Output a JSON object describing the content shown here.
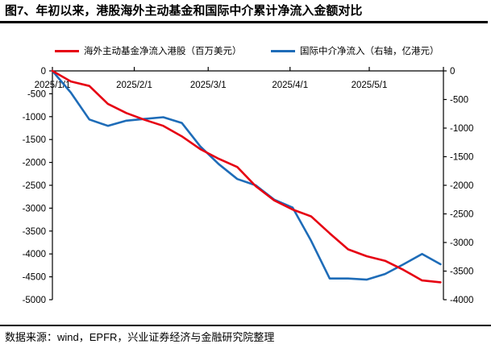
{
  "title": "图7、年初以来，港股海外主动基金和国际中介累计净流入金额对比",
  "colors": {
    "series_red": "#e60012",
    "series_blue": "#1e6cb8",
    "axis": "#000000",
    "rule": "#000000"
  },
  "legend": {
    "items": [
      {
        "label": "海外主动基金净流入港股（百万美元）",
        "color": "#e60012"
      },
      {
        "label": "国际中介净流入（右轴，亿港元）",
        "color": "#1e6cb8"
      }
    ]
  },
  "footer": {
    "source_text": "数据来源：wind，EPFR，兴业证券经济与金融研究院整理"
  },
  "chart_data": {
    "type": "line",
    "title": "图7、年初以来，港股海外主动基金和国际中介累计净流入金额对比",
    "grid": false,
    "legend_position": "top",
    "x": [
      "2025/1/1",
      "2025/1/8",
      "2025/1/15",
      "2025/1/22",
      "2025/1/29",
      "2025/2/5",
      "2025/2/12",
      "2025/2/19",
      "2025/2/26",
      "2025/3/5",
      "2025/3/12",
      "2025/3/19",
      "2025/3/26",
      "2025/4/2",
      "2025/4/9",
      "2025/4/16",
      "2025/4/23",
      "2025/4/30",
      "2025/5/7",
      "2025/5/14",
      "2025/5/21",
      "2025/5/28"
    ],
    "x_day_offsets": [
      0,
      7,
      14,
      21,
      28,
      35,
      42,
      49,
      56,
      63,
      70,
      77,
      84,
      91,
      98,
      105,
      112,
      119,
      126,
      133,
      140,
      147
    ],
    "series": [
      {
        "name": "海外主动基金净流入港股（百万美元）",
        "axis": "left",
        "color": "#e60012",
        "values": [
          0,
          -230,
          -330,
          -720,
          -920,
          -1070,
          -1200,
          -1430,
          -1710,
          -1920,
          -2100,
          -2520,
          -2830,
          -3030,
          -3180,
          -3550,
          -3900,
          -4050,
          -4150,
          -4350,
          -4580,
          -4620
        ]
      },
      {
        "name": "国际中介净流入（右轴，亿港元）",
        "axis": "right",
        "color": "#1e6cb8",
        "values": [
          0,
          -380,
          -850,
          -960,
          -870,
          -840,
          -810,
          -910,
          -1320,
          -1630,
          -1890,
          -2000,
          -2250,
          -2390,
          -2970,
          -3630,
          -3630,
          -3650,
          -3550,
          -3380,
          -3200,
          -3380
        ]
      }
    ],
    "left_axis": {
      "label": "百万美元",
      "min": -5000,
      "max": 0,
      "ticks": [
        0,
        -500,
        -1000,
        -1500,
        -2000,
        -2500,
        -3000,
        -3500,
        -4000,
        -4500,
        -5000
      ]
    },
    "right_axis": {
      "label": "亿港元",
      "min": -4000,
      "max": 0,
      "ticks": [
        0,
        -500,
        -1000,
        -1500,
        -2000,
        -2500,
        -3000,
        -3500,
        -4000
      ]
    },
    "x_axis": {
      "tick_labels": [
        "2025/1/1",
        "2025/2/1",
        "2025/3/1",
        "2025/4/1",
        "2025/5/1"
      ],
      "tick_day_offsets": [
        0,
        31,
        59,
        90,
        120
      ],
      "axis_position": "zero-top"
    }
  }
}
